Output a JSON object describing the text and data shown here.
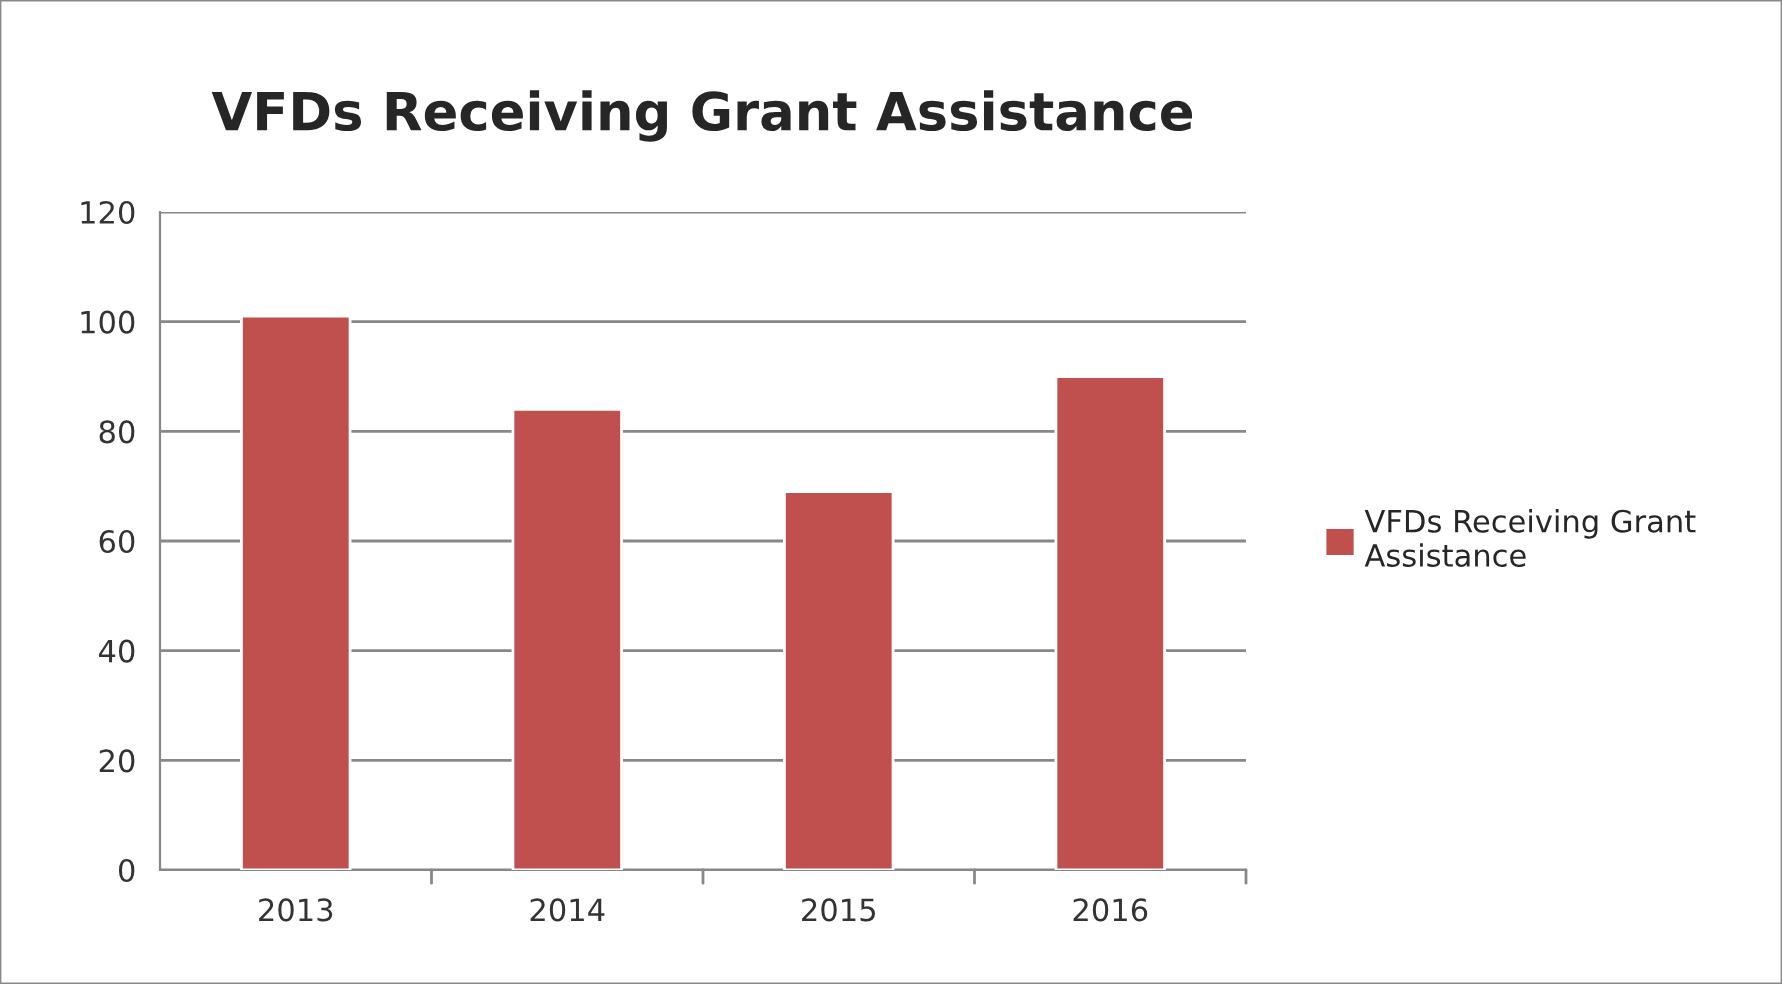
{
  "chart_data": {
    "type": "bar",
    "title": "VFDs Receiving Grant Assistance",
    "categories": [
      "2013",
      "2014",
      "2015",
      "2016"
    ],
    "series": [
      {
        "name": "VFDs Receiving Grant Assistance",
        "color": "#c0504d",
        "values": [
          101,
          84,
          69,
          90
        ]
      }
    ],
    "ylim": [
      0,
      120
    ],
    "yticks": [
      0,
      20,
      40,
      60,
      80,
      100,
      120
    ],
    "grid": "y",
    "legend": "right"
  }
}
